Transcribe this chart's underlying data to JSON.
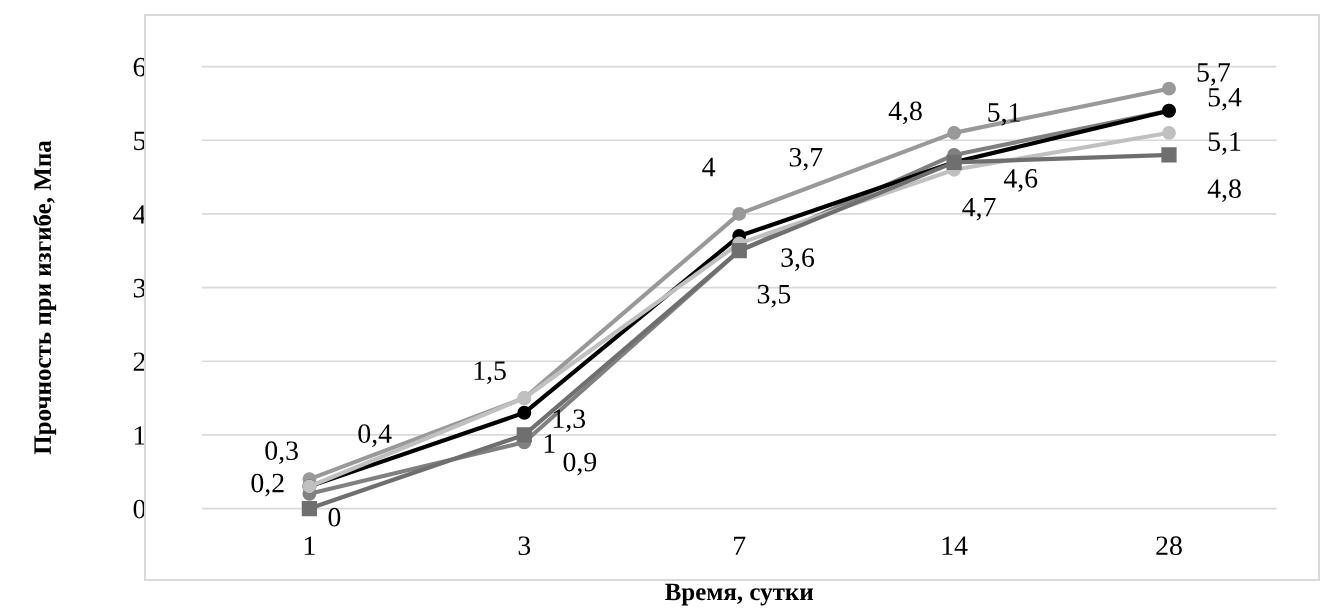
{
  "chart_data": {
    "type": "line",
    "xlabel": "Время, сутки",
    "ylabel": "Прочность при изгибе, Мпа",
    "categories": [
      "1",
      "3",
      "7",
      "14",
      "28"
    ],
    "series": [
      {
        "color": "#808080",
        "marker": "circle",
        "values": [
          0.2,
          0.9,
          3.5,
          4.8,
          5.4
        ],
        "value_labels": [
          "0,2",
          "0,9",
          null,
          "4,8",
          null
        ]
      },
      {
        "color": "#999999",
        "marker": "circle",
        "values": [
          0.4,
          1.5,
          4,
          5.1,
          5.7
        ],
        "value_labels": [
          "0,4",
          "1,5",
          "4",
          "5,1",
          "5,7"
        ]
      },
      {
        "color": "#000000",
        "marker": "circle",
        "values": [
          0.3,
          1.3,
          3.7,
          4.7,
          5.4
        ],
        "value_labels": [
          "0,3",
          "1,3",
          "3,7",
          "4,7",
          "5,4"
        ]
      },
      {
        "color": "#c0c0c0",
        "marker": "circle",
        "values": [
          0.3,
          1.5,
          3.6,
          4.6,
          5.1
        ],
        "value_labels": [
          null,
          null,
          "3,6",
          "4,6",
          "5,1"
        ]
      },
      {
        "color": "#6f6f6f",
        "marker": "square",
        "values": [
          0,
          1,
          3.5,
          4.7,
          4.8
        ],
        "value_labels": [
          "0",
          "1",
          "3,5",
          null,
          "4,8"
        ]
      }
    ],
    "ylim": [
      -0.97,
      6.7
    ],
    "yticks": [
      0,
      1,
      2,
      3,
      4,
      5,
      6
    ],
    "grid": "y",
    "line_style": "solid"
  }
}
